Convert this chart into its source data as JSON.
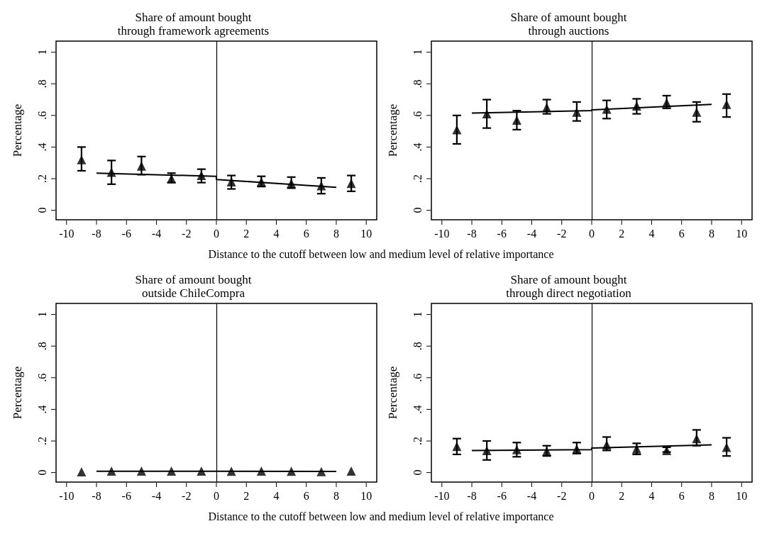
{
  "chart_data": [
    {
      "type": "scatter",
      "title": "Share of amount bought\nthrough framework agreements",
      "ylabel": "Percentage",
      "xlabel": "Distance to the cutoff between low and medium level of relative importance",
      "x": [
        -9,
        -7,
        -5,
        -3,
        -1,
        1,
        3,
        5,
        7,
        9
      ],
      "marker": "triangle",
      "grid": false,
      "xlim": [
        -10.7,
        10.7
      ],
      "xticks": [
        -10,
        -8,
        -6,
        -4,
        -2,
        0,
        2,
        4,
        6,
        8,
        10
      ],
      "ylim": [
        -0.06,
        1.07
      ],
      "yticks": [
        {
          "value": 0,
          "label": "0"
        },
        {
          "value": 0.2,
          "label": ".2"
        },
        {
          "value": 0.4,
          "label": ".4"
        },
        {
          "value": 0.6,
          "label": ".6"
        },
        {
          "value": 0.8,
          "label": ".8"
        },
        {
          "value": 1,
          "label": "1"
        }
      ],
      "ref_lines": [
        {
          "axis": "x",
          "value": 0,
          "color": "#000000"
        }
      ],
      "series": [
        {
          "color": "#000000",
          "values": [
            0.32,
            0.24,
            0.28,
            0.2,
            0.22,
            0.18,
            0.18,
            0.17,
            0.155,
            0.17
          ],
          "errors": [
            [
              0.25,
              0.4
            ],
            [
              0.165,
              0.315
            ],
            [
              0.225,
              0.34
            ],
            [
              0.175,
              0.235
            ],
            [
              0.175,
              0.26
            ],
            [
              0.135,
              0.22
            ],
            [
              0.15,
              0.215
            ],
            [
              0.14,
              0.21
            ],
            [
              0.105,
              0.205
            ],
            [
              0.12,
              0.22
            ]
          ]
        },
        {
          "type": "line",
          "color": "#000000",
          "marker": "none",
          "x": [
            -8,
            0,
            0,
            8
          ],
          "values": [
            0.235,
            0.215,
            0.195,
            0.145
          ]
        }
      ]
    },
    {
      "type": "scatter",
      "title": "Share of amount bought\nthrough auctions",
      "ylabel": "Percentage",
      "x": [
        -9,
        -7,
        -5,
        -3,
        -1,
        1,
        3,
        5,
        7,
        9
      ],
      "marker": "triangle",
      "grid": false,
      "xlim": [
        -10.7,
        10.7
      ],
      "xticks": [
        -10,
        -8,
        -6,
        -4,
        -2,
        0,
        2,
        4,
        6,
        8,
        10
      ],
      "ylim": [
        -0.06,
        1.07
      ],
      "yticks": [
        {
          "value": 0,
          "label": "0"
        },
        {
          "value": 0.2,
          "label": ".2"
        },
        {
          "value": 0.4,
          "label": ".4"
        },
        {
          "value": 0.6,
          "label": ".6"
        },
        {
          "value": 0.8,
          "label": ".8"
        },
        {
          "value": 1,
          "label": "1"
        }
      ],
      "ref_lines": [
        {
          "axis": "x",
          "value": 0,
          "color": "#000000"
        }
      ],
      "series": [
        {
          "color": "#000000",
          "values": [
            0.51,
            0.61,
            0.57,
            0.65,
            0.62,
            0.64,
            0.66,
            0.68,
            0.62,
            0.67
          ],
          "errors": [
            [
              0.42,
              0.6
            ],
            [
              0.52,
              0.7
            ],
            [
              0.51,
              0.63
            ],
            [
              0.61,
              0.7
            ],
            [
              0.565,
              0.685
            ],
            [
              0.58,
              0.695
            ],
            [
              0.61,
              0.705
            ],
            [
              0.645,
              0.725
            ],
            [
              0.56,
              0.685
            ],
            [
              0.59,
              0.735
            ]
          ]
        },
        {
          "type": "line",
          "color": "#000000",
          "marker": "none",
          "x": [
            -8,
            0,
            0,
            8
          ],
          "values": [
            0.615,
            0.63,
            0.635,
            0.67
          ]
        }
      ]
    },
    {
      "type": "scatter",
      "title": "Share of amount bought\noutside ChileCompra",
      "ylabel": "Percentage",
      "xlabel": "Distance to the cutoff between low and medium level of relative importance",
      "x": [
        -9,
        -7,
        -5,
        -3,
        -1,
        1,
        3,
        5,
        7,
        9
      ],
      "marker": "triangle",
      "grid": false,
      "xlim": [
        -10.7,
        10.7
      ],
      "xticks": [
        -10,
        -8,
        -6,
        -4,
        -2,
        0,
        2,
        4,
        6,
        8,
        10
      ],
      "ylim": [
        -0.06,
        1.07
      ],
      "yticks": [
        {
          "value": 0,
          "label": "0"
        },
        {
          "value": 0.2,
          "label": ".2"
        },
        {
          "value": 0.4,
          "label": ".4"
        },
        {
          "value": 0.6,
          "label": ".6"
        },
        {
          "value": 0.8,
          "label": ".8"
        },
        {
          "value": 1,
          "label": "1"
        }
      ],
      "ref_lines": [
        {
          "axis": "x",
          "value": 0,
          "color": "#000000"
        }
      ],
      "series": [
        {
          "color": "#000000",
          "values": [
            0.005,
            0.01,
            0.01,
            0.01,
            0.01,
            0.008,
            0.01,
            0.008,
            0.006,
            0.01
          ]
        },
        {
          "type": "line",
          "color": "#000000",
          "marker": "none",
          "x": [
            -8,
            0,
            0,
            8
          ],
          "values": [
            0.008,
            0.008,
            0.008,
            0.007
          ]
        }
      ]
    },
    {
      "type": "scatter",
      "title": "Share of amount bought\nthrough direct negotiation",
      "ylabel": "Percentage",
      "x": [
        -9,
        -7,
        -5,
        -3,
        -1,
        1,
        3,
        5,
        7,
        9
      ],
      "marker": "triangle",
      "grid": false,
      "xlim": [
        -10.7,
        10.7
      ],
      "xticks": [
        -10,
        -8,
        -6,
        -4,
        -2,
        0,
        2,
        4,
        6,
        8,
        10
      ],
      "ylim": [
        -0.06,
        1.07
      ],
      "yticks": [
        {
          "value": 0,
          "label": "0"
        },
        {
          "value": 0.2,
          "label": ".2"
        },
        {
          "value": 0.4,
          "label": ".4"
        },
        {
          "value": 0.6,
          "label": ".6"
        },
        {
          "value": 0.8,
          "label": ".8"
        },
        {
          "value": 1,
          "label": "1"
        }
      ],
      "ref_lines": [
        {
          "axis": "x",
          "value": 0,
          "color": "#000000"
        }
      ],
      "series": [
        {
          "color": "#000000",
          "values": [
            0.165,
            0.14,
            0.145,
            0.135,
            0.15,
            0.175,
            0.15,
            0.14,
            0.215,
            0.16
          ],
          "errors": [
            [
              0.115,
              0.215
            ],
            [
              0.08,
              0.2
            ],
            [
              0.1,
              0.19
            ],
            [
              0.105,
              0.17
            ],
            [
              0.12,
              0.19
            ],
            [
              0.14,
              0.225
            ],
            [
              0.115,
              0.185
            ],
            [
              0.13,
              0.16
            ],
            [
              0.17,
              0.27
            ],
            [
              0.105,
              0.22
            ]
          ]
        },
        {
          "type": "line",
          "color": "#000000",
          "marker": "none",
          "x": [
            -8,
            0,
            0,
            8
          ],
          "values": [
            0.14,
            0.145,
            0.155,
            0.175
          ]
        }
      ]
    }
  ]
}
